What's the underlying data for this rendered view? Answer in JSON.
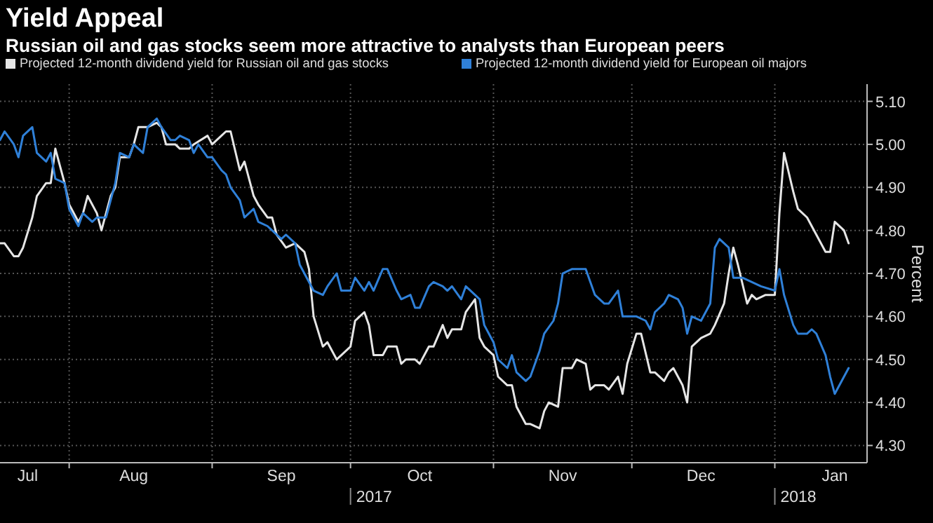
{
  "chart_data": {
    "type": "line",
    "title": "Yield Appeal",
    "subtitle": "Russian oil and gas stocks seem more attractive to analysts than European peers",
    "ylabel": "Percent",
    "legend": "top left",
    "grid": true,
    "ylim": [
      4.26,
      5.14
    ],
    "yticks": [
      {
        "value": 4.3,
        "label": "4.30"
      },
      {
        "value": 4.4,
        "label": "4.40"
      },
      {
        "value": 4.5,
        "label": "4.50"
      },
      {
        "value": 4.6,
        "label": "4.60"
      },
      {
        "value": 4.7,
        "label": "4.70"
      },
      {
        "value": 4.8,
        "label": "4.80"
      },
      {
        "value": 4.9,
        "label": "4.90"
      },
      {
        "value": 5.0,
        "label": "5.00"
      },
      {
        "value": 5.1,
        "label": "5.10"
      }
    ],
    "xlim": [
      "2017-07-17",
      "2018-01-21"
    ],
    "xticks": [
      {
        "value": "2017-07-23",
        "label": "Jul"
      },
      {
        "value": "2017-08-01",
        "label": null
      },
      {
        "value": "2017-08-15",
        "label": "Aug"
      },
      {
        "value": "2017-09-01",
        "label": null
      },
      {
        "value": "2017-09-16",
        "label": "Sep"
      },
      {
        "value": "2017-10-01",
        "label": null
      },
      {
        "value": "2017-10-16",
        "label": "Oct"
      },
      {
        "value": "2017-11-01",
        "label": null
      },
      {
        "value": "2017-11-16",
        "label": "Nov"
      },
      {
        "value": "2017-12-01",
        "label": null
      },
      {
        "value": "2017-12-16",
        "label": "Dec"
      },
      {
        "value": "2018-01-01",
        "label": null
      },
      {
        "value": "2018-01-14",
        "label": "Jan"
      }
    ],
    "annotations": [
      "2017",
      "2018"
    ],
    "series": [
      {
        "name": "Projected 12-month dividend yield for Russian oil and gas stocks",
        "color": "#e6e6e6",
        "x": [
          "2017-07-17",
          "2017-07-18",
          "2017-07-20",
          "2017-07-21",
          "2017-07-22",
          "2017-07-24",
          "2017-07-25",
          "2017-07-27",
          "2017-07-28",
          "2017-07-29",
          "2017-07-31",
          "2017-08-01",
          "2017-08-03",
          "2017-08-04",
          "2017-08-05",
          "2017-08-07",
          "2017-08-08",
          "2017-08-10",
          "2017-08-11",
          "2017-08-12",
          "2017-08-14",
          "2017-08-15",
          "2017-08-16",
          "2017-08-18",
          "2017-08-20",
          "2017-08-21",
          "2017-08-22",
          "2017-08-24",
          "2017-08-25",
          "2017-08-27",
          "2017-08-28",
          "2017-08-31",
          "2017-09-01",
          "2017-09-03",
          "2017-09-04",
          "2017-09-05",
          "2017-09-07",
          "2017-09-08",
          "2017-09-10",
          "2017-09-11",
          "2017-09-13",
          "2017-09-14",
          "2017-09-15",
          "2017-09-17",
          "2017-09-19",
          "2017-09-21",
          "2017-09-22",
          "2017-09-23",
          "2017-09-25",
          "2017-09-26",
          "2017-09-28",
          "2017-09-29",
          "2017-10-01",
          "2017-10-02",
          "2017-10-04",
          "2017-10-05",
          "2017-10-06",
          "2017-10-08",
          "2017-10-09",
          "2017-10-11",
          "2017-10-12",
          "2017-10-13",
          "2017-10-15",
          "2017-10-16",
          "2017-10-18",
          "2017-10-19",
          "2017-10-21",
          "2017-10-22",
          "2017-10-23",
          "2017-10-25",
          "2017-10-26",
          "2017-10-28",
          "2017-10-29",
          "2017-10-30",
          "2017-11-01",
          "2017-11-02",
          "2017-11-04",
          "2017-11-05",
          "2017-11-06",
          "2017-11-08",
          "2017-11-09",
          "2017-11-11",
          "2017-11-12",
          "2017-11-13",
          "2017-11-15",
          "2017-11-16",
          "2017-11-18",
          "2017-11-19",
          "2017-11-21",
          "2017-11-22",
          "2017-11-23",
          "2017-11-25",
          "2017-11-26",
          "2017-11-28",
          "2017-11-29",
          "2017-11-30",
          "2017-12-02",
          "2017-12-03",
          "2017-12-05",
          "2017-12-06",
          "2017-12-08",
          "2017-12-09",
          "2017-12-10",
          "2017-12-12",
          "2017-12-13",
          "2017-12-14",
          "2017-12-16",
          "2017-12-18",
          "2017-12-19",
          "2017-12-21",
          "2017-12-22",
          "2017-12-23",
          "2017-12-24",
          "2017-12-26",
          "2017-12-27",
          "2017-12-28",
          "2017-12-30",
          "2018-01-01",
          "2018-01-02",
          "2018-01-03",
          "2018-01-05",
          "2018-01-06",
          "2018-01-08",
          "2018-01-09",
          "2018-01-10",
          "2018-01-12",
          "2018-01-13",
          "2018-01-14",
          "2018-01-16",
          "2018-01-17"
        ],
        "values": [
          4.77,
          4.77,
          4.74,
          4.74,
          4.76,
          4.83,
          4.88,
          4.91,
          4.91,
          4.99,
          4.91,
          4.86,
          4.82,
          4.84,
          4.88,
          4.84,
          4.8,
          4.88,
          4.9,
          4.97,
          4.97,
          5.0,
          5.04,
          5.04,
          5.05,
          5.04,
          5.0,
          5.0,
          4.99,
          4.99,
          5.0,
          5.02,
          5.0,
          5.02,
          5.03,
          5.03,
          4.94,
          4.96,
          4.88,
          4.86,
          4.83,
          4.83,
          4.79,
          4.76,
          4.77,
          4.75,
          4.71,
          4.6,
          4.53,
          4.54,
          4.5,
          4.51,
          4.53,
          4.59,
          4.61,
          4.58,
          4.51,
          4.51,
          4.53,
          4.53,
          4.49,
          4.5,
          4.5,
          4.49,
          4.53,
          4.53,
          4.58,
          4.55,
          4.57,
          4.57,
          4.61,
          4.64,
          4.55,
          4.53,
          4.51,
          4.46,
          4.44,
          4.44,
          4.39,
          4.35,
          4.35,
          4.34,
          4.38,
          4.4,
          4.39,
          4.48,
          4.48,
          4.5,
          4.49,
          4.43,
          4.44,
          4.44,
          4.43,
          4.46,
          4.42,
          4.49,
          4.56,
          4.56,
          4.47,
          4.47,
          4.45,
          4.47,
          4.48,
          4.44,
          4.4,
          4.53,
          4.55,
          4.56,
          4.58,
          4.63,
          4.7,
          4.76,
          4.72,
          4.63,
          4.65,
          4.64,
          4.65,
          4.65,
          4.84,
          4.98,
          4.89,
          4.85,
          4.83,
          4.81,
          4.79,
          4.75,
          4.75,
          4.82,
          4.8,
          4.77
        ]
      },
      {
        "name": "Projected 12-month dividend yield for European oil majors",
        "color": "#2f80d8",
        "x": [
          "2017-07-17",
          "2017-07-18",
          "2017-07-20",
          "2017-07-21",
          "2017-07-22",
          "2017-07-24",
          "2017-07-25",
          "2017-07-27",
          "2017-07-28",
          "2017-07-29",
          "2017-07-31",
          "2017-08-01",
          "2017-08-03",
          "2017-08-04",
          "2017-08-06",
          "2017-08-07",
          "2017-08-09",
          "2017-08-10",
          "2017-08-11",
          "2017-08-12",
          "2017-08-14",
          "2017-08-15",
          "2017-08-17",
          "2017-08-18",
          "2017-08-20",
          "2017-08-21",
          "2017-08-23",
          "2017-08-24",
          "2017-08-25",
          "2017-08-27",
          "2017-08-28",
          "2017-08-29",
          "2017-08-31",
          "2017-09-01",
          "2017-09-03",
          "2017-09-04",
          "2017-09-05",
          "2017-09-07",
          "2017-09-08",
          "2017-09-10",
          "2017-09-11",
          "2017-09-13",
          "2017-09-14",
          "2017-09-16",
          "2017-09-17",
          "2017-09-19",
          "2017-09-20",
          "2017-09-22",
          "2017-09-23",
          "2017-09-25",
          "2017-09-26",
          "2017-09-28",
          "2017-09-29",
          "2017-10-01",
          "2017-10-02",
          "2017-10-04",
          "2017-10-05",
          "2017-10-06",
          "2017-10-08",
          "2017-10-09",
          "2017-10-11",
          "2017-10-12",
          "2017-10-14",
          "2017-10-15",
          "2017-10-16",
          "2017-10-18",
          "2017-10-19",
          "2017-10-21",
          "2017-10-22",
          "2017-10-23",
          "2017-10-25",
          "2017-10-26",
          "2017-10-28",
          "2017-10-29",
          "2017-10-30",
          "2017-11-01",
          "2017-11-02",
          "2017-11-04",
          "2017-11-05",
          "2017-11-06",
          "2017-11-08",
          "2017-11-09",
          "2017-11-11",
          "2017-11-12",
          "2017-11-14",
          "2017-11-15",
          "2017-11-16",
          "2017-11-18",
          "2017-11-19",
          "2017-11-21",
          "2017-11-22",
          "2017-11-23",
          "2017-11-25",
          "2017-11-26",
          "2017-11-28",
          "2017-11-29",
          "2017-12-01",
          "2017-12-02",
          "2017-12-04",
          "2017-12-05",
          "2017-12-06",
          "2017-12-08",
          "2017-12-09",
          "2017-12-11",
          "2017-12-12",
          "2017-12-13",
          "2017-12-14",
          "2017-12-16",
          "2017-12-18",
          "2017-12-19",
          "2017-12-20",
          "2017-12-22",
          "2017-12-23",
          "2017-12-25",
          "2017-12-29",
          "2018-01-01",
          "2018-01-02",
          "2018-01-03",
          "2018-01-05",
          "2018-01-06",
          "2018-01-08",
          "2018-01-09",
          "2018-01-10",
          "2018-01-12",
          "2018-01-13",
          "2018-01-14",
          "2018-01-16",
          "2018-01-17"
        ],
        "values": [
          5.01,
          5.03,
          5.0,
          4.97,
          5.02,
          5.04,
          4.98,
          4.96,
          4.98,
          4.92,
          4.91,
          4.85,
          4.81,
          4.84,
          4.82,
          4.83,
          4.83,
          4.87,
          4.91,
          4.98,
          4.97,
          5.0,
          4.98,
          5.04,
          5.06,
          5.04,
          5.01,
          5.01,
          5.02,
          5.01,
          4.98,
          5.0,
          4.97,
          4.97,
          4.94,
          4.93,
          4.9,
          4.87,
          4.83,
          4.85,
          4.82,
          4.81,
          4.8,
          4.78,
          4.79,
          4.77,
          4.72,
          4.68,
          4.66,
          4.65,
          4.67,
          4.7,
          4.66,
          4.66,
          4.69,
          4.66,
          4.68,
          4.66,
          4.71,
          4.71,
          4.66,
          4.64,
          4.65,
          4.62,
          4.62,
          4.67,
          4.68,
          4.67,
          4.66,
          4.67,
          4.64,
          4.67,
          4.65,
          4.64,
          4.58,
          4.54,
          4.5,
          4.48,
          4.51,
          4.47,
          4.45,
          4.46,
          4.52,
          4.56,
          4.59,
          4.63,
          4.7,
          4.71,
          4.71,
          4.71,
          4.68,
          4.65,
          4.63,
          4.63,
          4.66,
          4.6,
          4.6,
          4.6,
          4.59,
          4.57,
          4.61,
          4.63,
          4.65,
          4.64,
          4.62,
          4.56,
          4.6,
          4.59,
          4.63,
          4.76,
          4.78,
          4.76,
          4.69,
          4.69,
          4.67,
          4.66,
          4.71,
          4.65,
          4.58,
          4.56,
          4.56,
          4.57,
          4.56,
          4.51,
          4.46,
          4.42,
          4.46,
          4.48
        ]
      }
    ]
  }
}
